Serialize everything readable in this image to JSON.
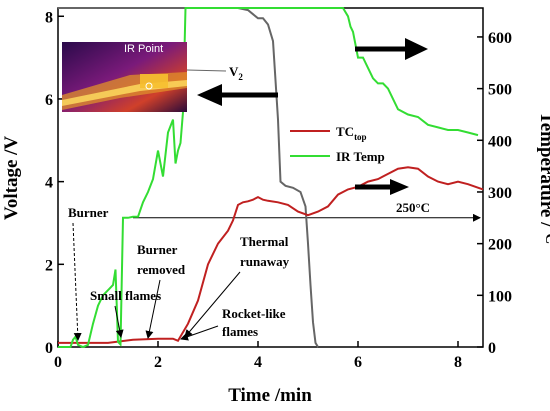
{
  "chart_data": {
    "type": "line",
    "xlabel": "Time /min",
    "ylabel_left": "Voltage /V",
    "ylabel_right_main": "Temperature /",
    "ylabel_right_unit": "°C",
    "xlim": [
      0,
      8.5
    ],
    "ylim_left": [
      0,
      8.2
    ],
    "ylim_right": [
      0,
      656
    ],
    "x_ticks": [
      0,
      2,
      4,
      6,
      8
    ],
    "y_left_ticks": [
      0,
      2,
      4,
      6,
      8
    ],
    "y_right_ticks": [
      0,
      100,
      200,
      300,
      400,
      500,
      600
    ],
    "legend": {
      "placement": "center-right",
      "entries": [
        "TC",
        "IR Temp"
      ],
      "tc_subscript": "top"
    },
    "series": [
      {
        "name": "V",
        "subscript": "2",
        "axis": "left",
        "color": "#666666",
        "x": [
          0.0,
          0.5,
          1.0,
          1.5,
          2.0,
          2.5,
          3.0,
          3.5,
          3.6,
          3.8,
          3.9,
          4.0,
          4.1,
          4.2,
          4.3,
          4.4,
          4.45,
          4.55,
          4.7,
          4.85,
          4.95,
          5.0,
          5.05,
          5.1,
          5.15,
          5.2
        ],
        "values": [
          8.2,
          8.2,
          8.2,
          8.2,
          8.2,
          8.2,
          8.2,
          8.2,
          8.2,
          8.15,
          8.05,
          7.95,
          7.95,
          7.8,
          7.4,
          5.5,
          4.0,
          3.9,
          3.85,
          3.75,
          3.4,
          2.5,
          1.5,
          0.6,
          0.1,
          0.0
        ]
      },
      {
        "name": "TC",
        "subscript": "top",
        "axis": "right",
        "color": "#c02020",
        "x": [
          0.0,
          0.5,
          1.0,
          1.5,
          2.0,
          2.3,
          2.4,
          2.6,
          2.8,
          3.0,
          3.2,
          3.4,
          3.5,
          3.6,
          3.7,
          3.8,
          3.9,
          4.0,
          4.1,
          4.2,
          4.4,
          4.6,
          4.8,
          5.0,
          5.2,
          5.4,
          5.6,
          5.8,
          6.0,
          6.2,
          6.4,
          6.6,
          6.8,
          7.0,
          7.2,
          7.4,
          7.6,
          7.8,
          8.0,
          8.2,
          8.5
        ],
        "values": [
          8,
          8,
          8,
          14,
          16,
          16,
          12,
          45,
          90,
          160,
          200,
          225,
          245,
          275,
          280,
          282,
          285,
          290,
          285,
          283,
          280,
          275,
          262,
          255,
          262,
          272,
          295,
          305,
          310,
          320,
          325,
          335,
          345,
          348,
          345,
          330,
          320,
          315,
          320,
          315,
          305
        ]
      },
      {
        "name": "IR Temp",
        "axis": "right",
        "color": "#33dd33",
        "x": [
          0.0,
          0.25,
          0.3,
          0.35,
          0.4,
          0.5,
          0.6,
          0.7,
          0.8,
          0.9,
          1.0,
          1.1,
          1.15,
          1.2,
          1.25,
          1.3,
          1.4,
          1.5,
          1.6,
          1.7,
          1.8,
          1.9,
          2.0,
          2.1,
          2.2,
          2.3,
          2.35,
          2.4,
          2.45,
          2.5,
          2.55,
          2.6,
          3.0,
          3.5,
          4.0,
          4.5,
          5.0,
          5.5,
          5.7,
          5.8,
          5.85,
          5.9,
          6.0,
          6.1,
          6.2,
          6.3,
          6.4,
          6.5,
          6.6,
          6.8,
          7.0,
          7.2,
          7.4,
          7.6,
          7.8,
          8.0,
          8.2,
          8.4
        ],
        "values": [
          0,
          0,
          14,
          20,
          4,
          0,
          4,
          45,
          80,
          100,
          110,
          120,
          150,
          10,
          5,
          250,
          250,
          252,
          252,
          280,
          300,
          325,
          380,
          330,
          415,
          440,
          355,
          380,
          395,
          455,
          656,
          656,
          656,
          656,
          656,
          656,
          656,
          656,
          656,
          640,
          620,
          610,
          560,
          560,
          540,
          520,
          510,
          510,
          500,
          460,
          450,
          445,
          430,
          425,
          420,
          420,
          415,
          410
        ]
      }
    ],
    "reference_line": {
      "y": 250,
      "label": "250°C",
      "x_from": 1.5,
      "x_to": 8.5
    },
    "annotations": [
      {
        "text": "Burner",
        "x": 0.4,
        "y_left": 0.25
      },
      {
        "text": "Small flames",
        "x": 1.15,
        "y_left": 0.3
      },
      {
        "text": "Burner",
        "x": 1.6,
        "y_left": 0.3
      },
      {
        "text": "removed",
        "x": 1.6,
        "y_left": 0.3
      },
      {
        "text": "Thermal",
        "x": 2.6,
        "y_left": 0.25
      },
      {
        "text": "runaway",
        "x": 2.6,
        "y_left": 0.25
      },
      {
        "text": "Rocket-like",
        "x": 2.3,
        "y_left": 0.25
      },
      {
        "text": "flames",
        "x": 2.3,
        "y_left": 0.25
      }
    ],
    "inset": {
      "label": "IR Point"
    },
    "grid": false
  },
  "colors": {
    "v2": "#666666",
    "tc": "#c02020",
    "ir": "#33dd33",
    "arrow": "#000000"
  }
}
